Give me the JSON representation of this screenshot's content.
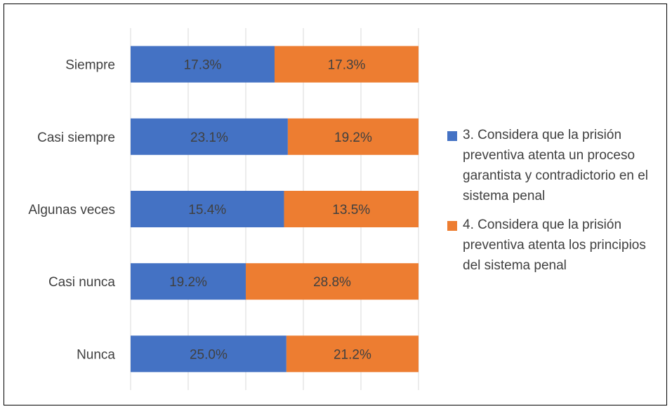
{
  "chart_data": {
    "type": "bar",
    "stacked": true,
    "orientation": "horizontal",
    "categories": [
      "Siempre",
      "Casi siempre",
      "Algunas veces",
      "Casi nunca",
      "Nunca"
    ],
    "series": [
      {
        "name": "3. Considera que la prisión preventiva atenta un proceso garantista y contradictorio en el sistema penal",
        "values": [
          17.3,
          23.1,
          15.4,
          19.2,
          25.0
        ],
        "labels": [
          "17.3%",
          "23.1%",
          "15.4%",
          "19.2%",
          "25.0%"
        ],
        "color": "#4472C4"
      },
      {
        "name": "4. Considera que la prisión preventiva atenta los principios  del sistema penal",
        "values": [
          17.3,
          19.2,
          13.5,
          28.8,
          21.2
        ],
        "labels": [
          "17.3%",
          "19.2%",
          "13.5%",
          "28.8%",
          "21.2%"
        ],
        "color": "#ED7D31"
      }
    ],
    "xlim": [
      0,
      100
    ],
    "grid": true,
    "legend_position": "right",
    "percent_stacked": true
  }
}
